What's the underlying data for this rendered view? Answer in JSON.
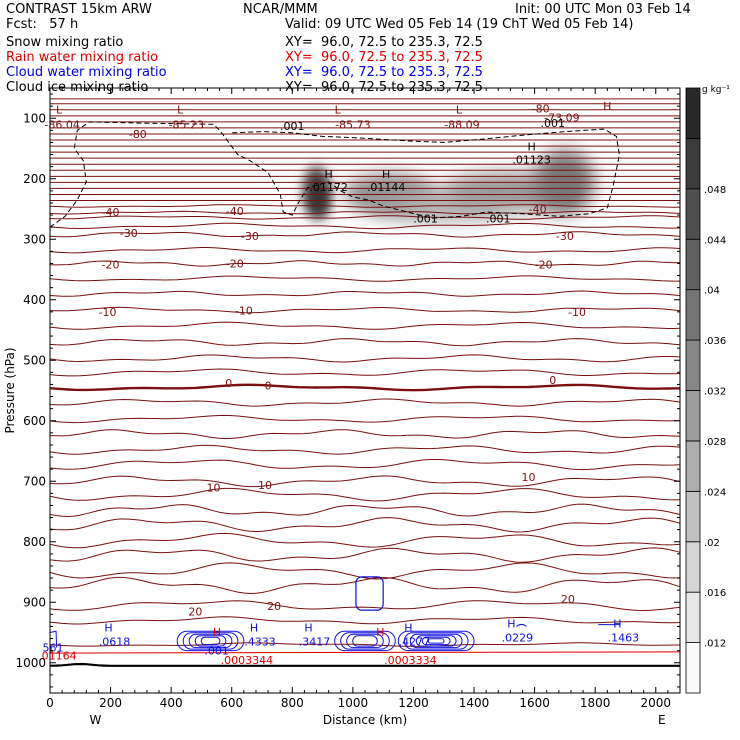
{
  "header": {
    "model": "CONTRAST 15km ARW",
    "org": "NCAR/MMM",
    "init": "Init: 00 UTC Mon 03 Feb 14",
    "fcst": "Fcst:   57 h",
    "valid": "Valid: 09 UTC Wed 05 Feb 14 (19 ChT Wed 05 Feb 14)",
    "fields": [
      {
        "name": "Snow mixing ratio",
        "xy": "XY=  96.0, 72.5 to 235.3, 72.5",
        "color": "#000000"
      },
      {
        "name": "Rain water mixing ratio",
        "xy": "XY=  96.0, 72.5 to 235.3, 72.5",
        "color": "#dd0000"
      },
      {
        "name": "Cloud water mixing ratio",
        "xy": "XY=  96.0, 72.5 to 235.3, 72.5",
        "color": "#0000dd"
      },
      {
        "name": "Cloud ice mixing ratio",
        "xy": "XY=  96.0, 72.5 to 235.3, 72.5",
        "color": "#000000"
      }
    ]
  },
  "chart_data": {
    "type": "contour",
    "xlabel": "Distance (km)",
    "ylabel": "Pressure (hPa)",
    "xlim": [
      0,
      2080
    ],
    "ylim": [
      1050,
      50
    ],
    "x_ticks": [
      0,
      200,
      400,
      600,
      800,
      1000,
      1200,
      1400,
      1600,
      1800,
      2000
    ],
    "y_ticks": [
      100,
      200,
      300,
      400,
      500,
      600,
      700,
      800,
      900,
      1000
    ],
    "x_end_labels": {
      "left": "W",
      "right": "E"
    },
    "colorbar": {
      "unit": "g kg⁻¹",
      "ticks": [
        ".012",
        ".016",
        ".02",
        ".024",
        ".028",
        ".032",
        ".036",
        ".04",
        ".044",
        ".048"
      ],
      "levels": 12
    },
    "temperature_contours": {
      "color": "#7a1010",
      "label_values": [
        "-86.04",
        "-80",
        "-85.23",
        "-85.73",
        "-80",
        "-88.09",
        "-80",
        "-73.09",
        "-40",
        "-40",
        "-40",
        "-30",
        "-30",
        "-30",
        "-20",
        "-20",
        "-20",
        "-10",
        "-10",
        "-10",
        "0",
        "0",
        "0",
        "10",
        "10",
        "10",
        "20",
        "20",
        "20"
      ],
      "extrema": [
        {
          "kind": "L",
          "x": 30,
          "p": 102,
          "value": "-86.04"
        },
        {
          "kind": "L",
          "x": 430,
          "p": 102,
          "value": "-85.23"
        },
        {
          "kind": "L",
          "x": 950,
          "p": 102,
          "value": "-85.73"
        },
        {
          "kind": "L",
          "x": 1350,
          "p": 102,
          "value": "-88.09"
        },
        {
          "kind": "H",
          "x": 1840,
          "p": 96,
          "value": "-73.09"
        }
      ]
    },
    "snow": {
      "extrema": [
        {
          "kind": "H",
          "x": 920,
          "p": 215,
          "value": ".01172"
        },
        {
          "kind": "H",
          "x": 1110,
          "p": 215,
          "value": ".01144"
        },
        {
          "kind": "H",
          "x": 1590,
          "p": 170,
          "value": ".01123"
        }
      ],
      "contour_labels": [
        ".001",
        ".001",
        ".001",
        ".001"
      ]
    },
    "cloud_water": {
      "extrema": [
        {
          "kind": "H",
          "x": 200,
          "p": 955,
          "value": ".0618"
        },
        {
          "kind": "H",
          "x": 680,
          "p": 955,
          "value": ".4333"
        },
        {
          "kind": "H",
          "x": 860,
          "p": 955,
          "value": ".3417"
        },
        {
          "kind": "H",
          "x": 1190,
          "p": 955,
          "value": ".4277"
        },
        {
          "kind": "H",
          "x": 1530,
          "p": 948,
          "value": ".0229"
        },
        {
          "kind": "H",
          "x": 1880,
          "p": 948,
          "value": ".1463"
        }
      ],
      "contour_labels": [
        ".001",
        "561"
      ]
    },
    "rain": {
      "extrema": [
        {
          "kind": "H",
          "x": 650,
          "p": 972,
          "value": ".0003344"
        },
        {
          "kind": "H",
          "x": 1190,
          "p": 972,
          "value": ".0003334"
        }
      ],
      "contour_labels": [
        "01164"
      ]
    }
  }
}
